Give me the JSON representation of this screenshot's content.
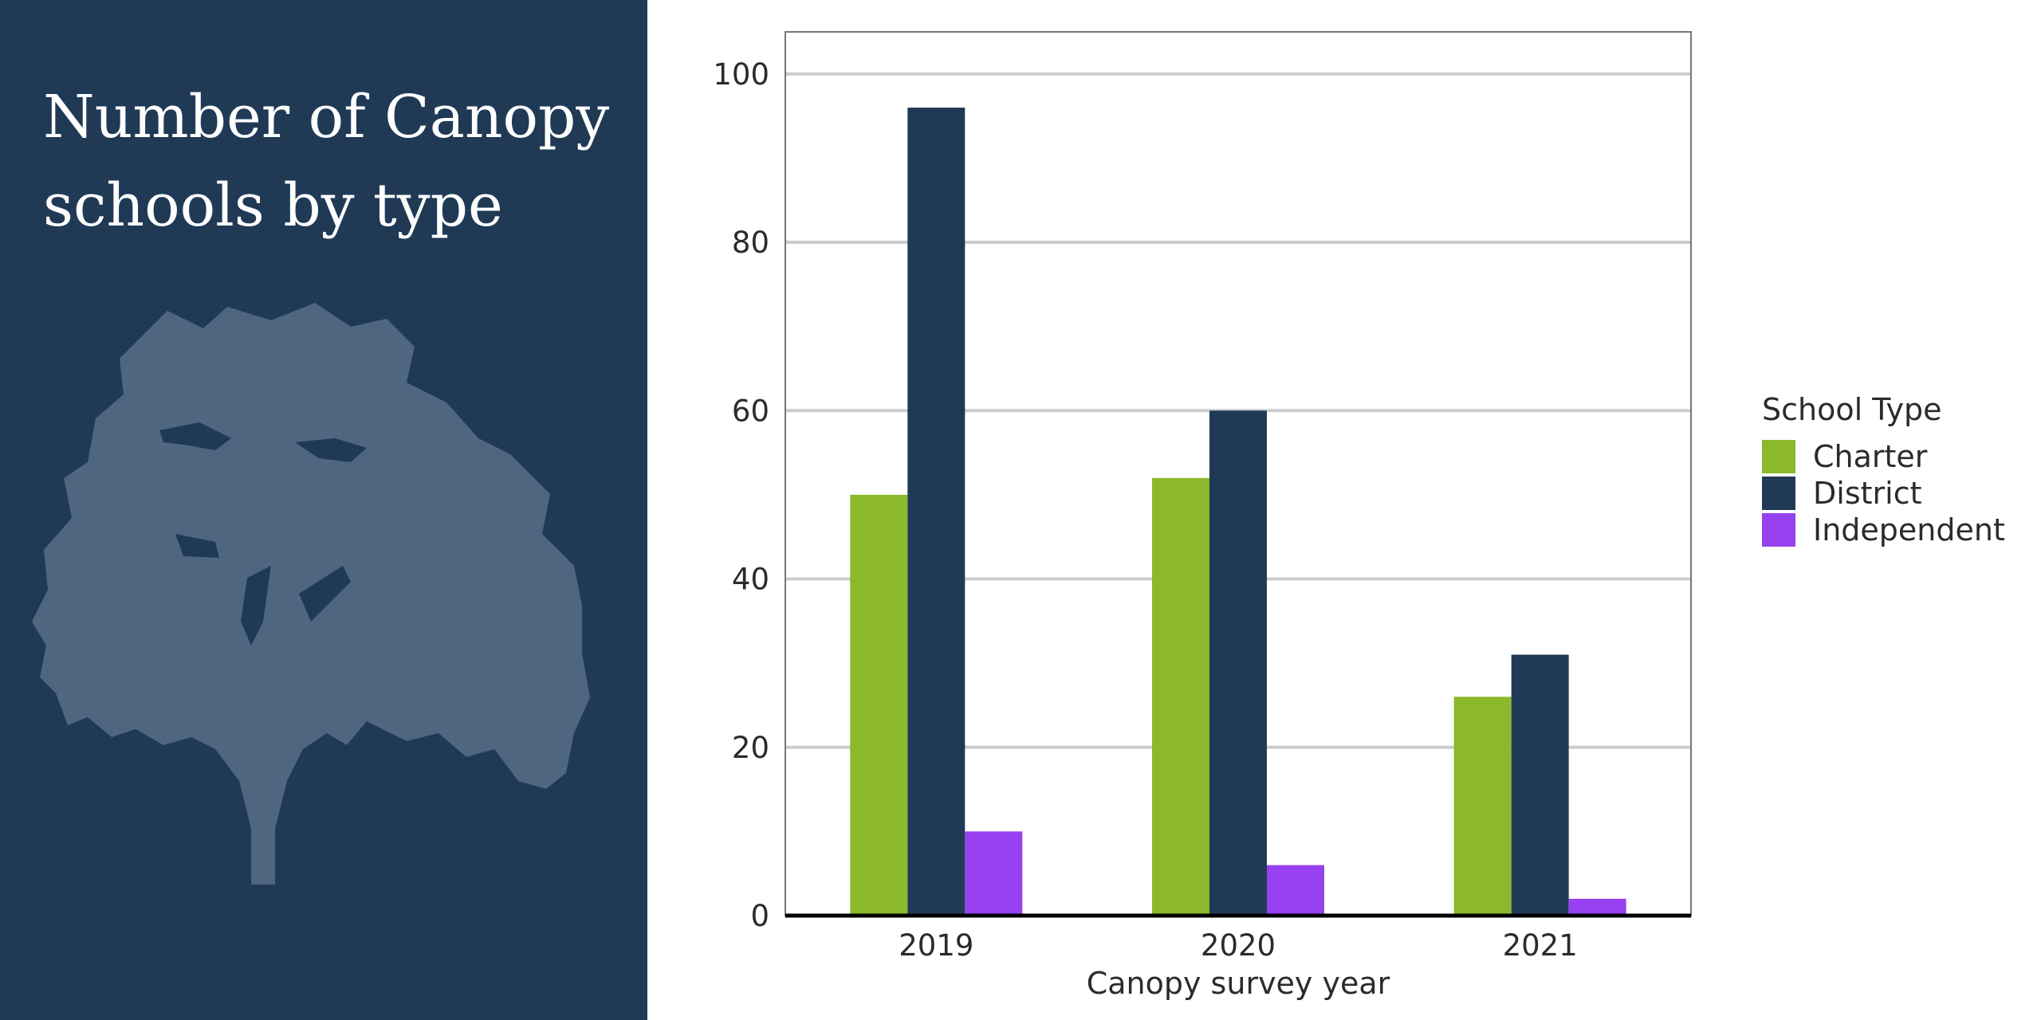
{
  "chart_data": {
    "type": "bar",
    "title": "Number of Canopy schools by type",
    "xlabel": "Canopy survey year",
    "ylabel": "",
    "categories": [
      "2019",
      "2020",
      "2021"
    ],
    "series": [
      {
        "name": "Charter",
        "values": [
          50,
          52,
          26
        ],
        "color": "#8cb82c"
      },
      {
        "name": "District",
        "values": [
          96,
          60,
          31
        ],
        "color": "#203a56"
      },
      {
        "name": "Independent",
        "values": [
          10,
          6,
          2
        ],
        "color": "#9640f0"
      }
    ],
    "ylim": [
      0,
      105
    ],
    "yticks": [
      0,
      20,
      40,
      60,
      80,
      100
    ],
    "grid": true,
    "legend": {
      "title": "School Type",
      "placement": "right"
    }
  },
  "colors": {
    "panel_background": "#203a56",
    "tree_silhouette": "#4f6680",
    "gridline": "#cccccc"
  },
  "decoration": {
    "tree_icon": "tree-silhouette-icon"
  }
}
